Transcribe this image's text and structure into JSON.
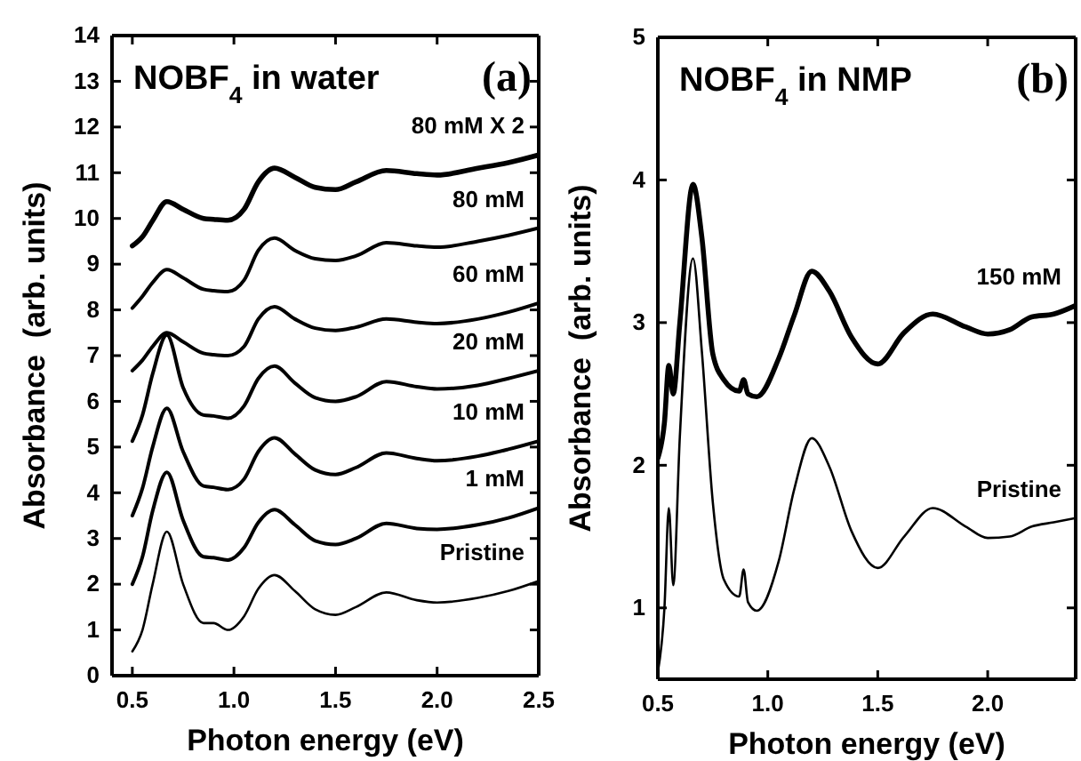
{
  "chart_data": [
    {
      "type": "line",
      "title": "NOBF$_{4}$ in water",
      "xlabel": "Photon energy (eV)",
      "ylabel": "Absorbance  (arb. units)",
      "annotations": [
        "(a)"
      ],
      "x": [
        0.5,
        0.55,
        0.6,
        0.67,
        0.75,
        0.85,
        0.9,
        0.97,
        1.05,
        1.12,
        1.2,
        1.3,
        1.4,
        1.5,
        1.6,
        1.75,
        1.9,
        2.0,
        2.2,
        2.35,
        2.5
      ],
      "xlim": [
        0.4,
        2.5
      ],
      "xticks": [
        {
          "value": 0.5,
          "label": "0.5"
        },
        {
          "value": 1.0,
          "label": "1.0"
        },
        {
          "value": 1.5,
          "label": "1.5"
        },
        {
          "value": 2.0,
          "label": "2.0"
        },
        {
          "value": 2.5,
          "label": "2.5"
        }
      ],
      "ylim": [
        0,
        14
      ],
      "yticks": [
        0,
        1,
        2,
        3,
        4,
        5,
        6,
        7,
        8,
        9,
        10,
        11,
        12,
        13,
        14
      ],
      "grid": false,
      "legend": "right",
      "marker": "none",
      "line_style": "solid",
      "series": [
        {
          "name": "Pristine",
          "color": "#000000",
          "values": [
            0.53,
            1.0,
            2.0,
            3.15,
            2.0,
            1.15,
            1.15,
            1.0,
            1.3,
            1.9,
            2.2,
            1.85,
            1.45,
            1.33,
            1.5,
            1.82,
            1.65,
            1.6,
            1.7,
            1.85,
            2.07
          ]
        },
        {
          "name": "1 mM",
          "color": "#000000",
          "values": [
            2.0,
            2.6,
            3.6,
            4.45,
            3.4,
            2.6,
            2.58,
            2.53,
            2.8,
            3.35,
            3.63,
            3.3,
            2.95,
            2.87,
            3.0,
            3.33,
            3.22,
            3.2,
            3.3,
            3.45,
            3.67
          ]
        },
        {
          "name": "10 mM",
          "color": "#000000",
          "values": [
            3.5,
            4.1,
            5.0,
            5.85,
            4.9,
            4.15,
            4.12,
            4.07,
            4.3,
            4.9,
            5.2,
            4.85,
            4.5,
            4.4,
            4.55,
            4.87,
            4.75,
            4.7,
            4.8,
            4.95,
            5.13
          ]
        },
        {
          "name": "20 mM",
          "color": "#000000",
          "values": [
            5.13,
            5.7,
            6.6,
            7.45,
            6.3,
            5.7,
            5.68,
            5.63,
            5.9,
            6.5,
            6.77,
            6.4,
            6.08,
            6.0,
            6.1,
            6.43,
            6.32,
            6.27,
            6.35,
            6.5,
            6.67
          ]
        },
        {
          "name": "60 mM",
          "color": "#000000",
          "values": [
            6.67,
            6.9,
            7.2,
            7.5,
            7.3,
            7.05,
            7.02,
            7.0,
            7.2,
            7.8,
            8.07,
            7.8,
            7.6,
            7.55,
            7.62,
            7.8,
            7.73,
            7.7,
            7.8,
            7.95,
            8.15
          ]
        },
        {
          "name": "80 mM",
          "color": "#000000",
          "values": [
            8.04,
            8.3,
            8.6,
            8.88,
            8.7,
            8.45,
            8.42,
            8.4,
            8.65,
            9.3,
            9.57,
            9.3,
            9.12,
            9.08,
            9.18,
            9.47,
            9.4,
            9.37,
            9.5,
            9.63,
            9.79
          ]
        },
        {
          "name": "80 mM X 2",
          "color": "#000000",
          "values": [
            9.4,
            9.6,
            9.95,
            10.37,
            10.2,
            10.0,
            9.98,
            9.96,
            10.2,
            10.8,
            11.1,
            10.9,
            10.68,
            10.63,
            10.8,
            11.05,
            10.98,
            10.95,
            11.1,
            11.22,
            11.39
          ]
        }
      ]
    },
    {
      "type": "line",
      "title": "NOBF$_{4}$ in NMP",
      "xlabel": "Photon energy (eV)",
      "ylabel": "Absorbance  (arb. units)",
      "annotations": [
        "(b)"
      ],
      "x": [
        0.5,
        0.53,
        0.55,
        0.57,
        0.6,
        0.66,
        0.7,
        0.75,
        0.8,
        0.87,
        0.89,
        0.91,
        0.95,
        1.05,
        1.12,
        1.2,
        1.28,
        1.38,
        1.5,
        1.62,
        1.75,
        1.9,
        2.0,
        2.1,
        2.2,
        2.3,
        2.4
      ],
      "xlim": [
        0.5,
        2.4
      ],
      "xticks": [
        {
          "value": 0.5,
          "label": "0.5"
        },
        {
          "value": 1.0,
          "label": "1.0"
        },
        {
          "value": 1.5,
          "label": "1.5"
        },
        {
          "value": 2.0,
          "label": "2.0"
        }
      ],
      "ylim": [
        0.5,
        5
      ],
      "yticks": [
        1,
        2,
        3,
        4,
        5
      ],
      "grid": false,
      "legend": "right",
      "marker": "none",
      "line_style": "solid",
      "series": [
        {
          "name": "Pristine",
          "color": "#000000",
          "values": [
            0.55,
            1.0,
            1.7,
            1.16,
            2.2,
            3.45,
            2.8,
            1.74,
            1.2,
            1.08,
            1.27,
            1.04,
            0.98,
            1.33,
            1.83,
            2.19,
            1.99,
            1.54,
            1.28,
            1.5,
            1.7,
            1.57,
            1.49,
            1.5,
            1.57,
            1.6,
            1.63
          ]
        },
        {
          "name": "150 mM",
          "color": "#000000",
          "values": [
            2.05,
            2.3,
            2.7,
            2.5,
            3.0,
            3.97,
            3.6,
            2.78,
            2.6,
            2.52,
            2.6,
            2.5,
            2.48,
            2.75,
            3.05,
            3.36,
            3.22,
            2.9,
            2.71,
            2.93,
            3.06,
            2.97,
            2.92,
            2.95,
            3.04,
            3.06,
            3.12
          ]
        }
      ]
    }
  ]
}
